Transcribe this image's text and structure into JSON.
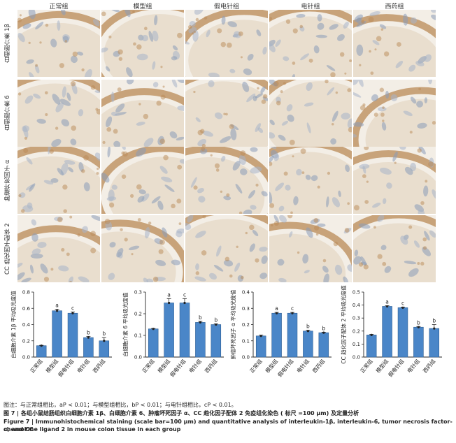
{
  "columns": [
    "正常组",
    "模型组",
    "假电针组",
    "电针组",
    "西药组"
  ],
  "rows": [
    "白细胞介素 1β",
    "白细胞介素 6",
    "肿瘤坏死因子 α",
    "CC 趋化因子配体 2"
  ],
  "colors": {
    "bar": "#4a86c8",
    "bar_edge": "#2f5f94",
    "tissue_brown": "#b98a55",
    "tissue_blue": "#8a9cb8"
  },
  "chart_data": [
    {
      "type": "bar",
      "ylabel": "白细胞介素 1β 平均吸光度值",
      "categories": [
        "正常组",
        "模型组",
        "假电针组",
        "电针组",
        "西药组"
      ],
      "values": [
        0.14,
        0.57,
        0.54,
        0.24,
        0.2
      ],
      "errors": [
        0.005,
        0.02,
        0.015,
        0.015,
        0.04
      ],
      "ylim": [
        0,
        0.8
      ],
      "yticks": [
        "0.0",
        "0.2",
        "0.4",
        "0.6",
        "0.8"
      ],
      "annotations": [
        "",
        "a",
        "c",
        "b",
        "b"
      ]
    },
    {
      "type": "bar",
      "ylabel": "白细胞介素 6 平均吸光度值",
      "categories": [
        "正常组",
        "模型组",
        "假电针组",
        "电针组",
        "西药组"
      ],
      "values": [
        0.13,
        0.25,
        0.25,
        0.16,
        0.15
      ],
      "errors": [
        0.002,
        0.02,
        0.02,
        0.005,
        0.003
      ],
      "ylim": [
        0,
        0.3
      ],
      "yticks": [
        "0.0",
        "0.1",
        "0.2",
        "0.3"
      ],
      "annotations": [
        "",
        "a",
        "c",
        "b",
        "b"
      ]
    },
    {
      "type": "bar",
      "ylabel": "肿瘤坏死因子 α 平均吸光度值",
      "categories": [
        "正常组",
        "模型组",
        "假电针组",
        "电针组",
        "西药组"
      ],
      "values": [
        0.13,
        0.27,
        0.27,
        0.16,
        0.15
      ],
      "errors": [
        0.005,
        0.005,
        0.005,
        0.005,
        0.003
      ],
      "ylim": [
        0,
        0.4
      ],
      "yticks": [
        "0.0",
        "0.1",
        "0.2",
        "0.3",
        "0.4"
      ],
      "annotations": [
        "",
        "a",
        "c",
        "b",
        "b"
      ]
    },
    {
      "type": "bar",
      "ylabel": "CC 趋化因子配体 2 平均吸光度值",
      "categories": [
        "正常组",
        "模型组",
        "假电针组",
        "电针组",
        "西药组"
      ],
      "values": [
        0.17,
        0.39,
        0.38,
        0.23,
        0.22
      ],
      "errors": [
        0.005,
        0.005,
        0.005,
        0.005,
        0.03
      ],
      "ylim": [
        0,
        0.5
      ],
      "yticks": [
        "0.0",
        "0.1",
        "0.2",
        "0.3",
        "0.4",
        "0.5"
      ],
      "annotations": [
        "",
        "a",
        "c",
        "b",
        "b"
      ]
    }
  ],
  "caption": {
    "note": "图注：与正常组相比，aP < 0.01；与模型组相比，bP < 0.01；与电针组相比，cP < 0.01。",
    "cn": "图 7 | 各组小鼠结肠组织白细胞介素 1β、白细胞介素 6、肿瘤坏死因子 α、CC 趋化因子配体 2 免疫组化染色 ( 标尺 =100 μm) 及定量分析",
    "en1": "Figure 7 | Immunohistochemical staining (scale bar=100 μm) and quantitative analysis of interleukin-1β, interleukin-6, tumor necrosis factor-α, and CC",
    "en2": "chemokine ligand 2 in mouse colon tissue in each group"
  }
}
